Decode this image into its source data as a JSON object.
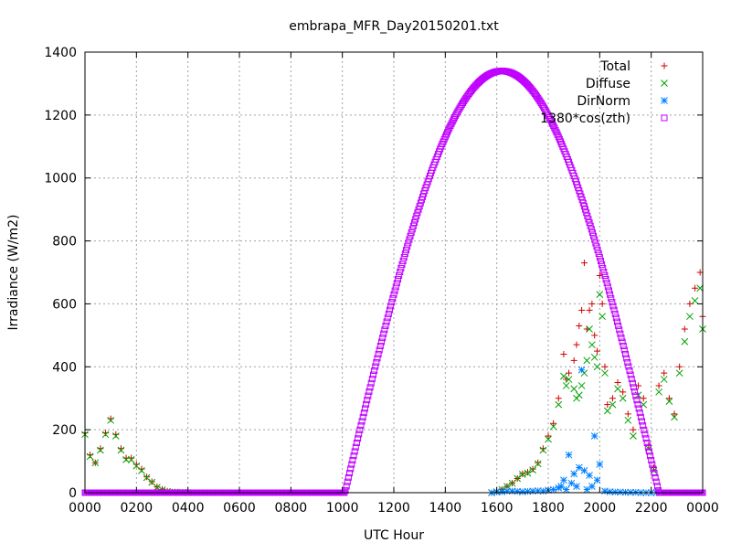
{
  "chart_data": {
    "type": "scatter",
    "title": "embrapa_MFR_Day20150201.txt",
    "xlabel": "UTC Hour",
    "ylabel": "Irradiance (W/m2)",
    "xlim": [
      0,
      24
    ],
    "ylim": [
      0,
      1400
    ],
    "grid": true,
    "legend_position": "top-right",
    "x_tick_labels": [
      "0000",
      "0200",
      "0400",
      "0600",
      "0800",
      "1000",
      "1200",
      "1400",
      "1600",
      "1800",
      "2000",
      "2200",
      "0000"
    ],
    "y_ticks": [
      0,
      200,
      400,
      600,
      800,
      1000,
      1200,
      1400
    ],
    "series": [
      {
        "name": "Total",
        "marker": "plus",
        "color": "#d00000",
        "x": [
          0.0,
          0.2,
          0.4,
          0.6,
          0.8,
          1.0,
          1.2,
          1.4,
          1.6,
          1.8,
          2.0,
          2.2,
          2.4,
          2.6,
          2.8,
          3.0,
          3.2,
          3.5,
          3.8,
          4.0,
          15.8,
          16.0,
          16.2,
          16.4,
          16.6,
          16.8,
          17.0,
          17.2,
          17.4,
          17.6,
          17.8,
          18.0,
          18.2,
          18.4,
          18.6,
          18.7,
          18.8,
          19.0,
          19.1,
          19.2,
          19.3,
          19.4,
          19.5,
          19.6,
          19.7,
          19.8,
          19.9,
          20.0,
          20.1,
          20.2,
          20.3,
          20.5,
          20.7,
          20.9,
          21.1,
          21.3,
          21.5,
          21.7,
          21.9,
          22.1,
          22.3,
          22.5,
          22.7,
          22.9,
          23.1,
          23.3,
          23.5,
          23.7,
          23.9,
          24.0
        ],
        "y": [
          190,
          120,
          95,
          140,
          190,
          235,
          185,
          140,
          110,
          110,
          90,
          75,
          50,
          35,
          18,
          10,
          5,
          2,
          1,
          0,
          0,
          3,
          10,
          20,
          30,
          45,
          60,
          65,
          75,
          95,
          140,
          180,
          220,
          300,
          440,
          360,
          380,
          420,
          470,
          530,
          580,
          730,
          520,
          580,
          600,
          500,
          450,
          690,
          600,
          400,
          280,
          300,
          350,
          320,
          250,
          200,
          340,
          300,
          150,
          80,
          340,
          380,
          300,
          250,
          400,
          520,
          600,
          650,
          700,
          560
        ]
      },
      {
        "name": "Diffuse",
        "marker": "cross",
        "color": "#00a000",
        "x": [
          0.0,
          0.2,
          0.4,
          0.6,
          0.8,
          1.0,
          1.2,
          1.4,
          1.6,
          1.8,
          2.0,
          2.2,
          2.4,
          2.6,
          2.8,
          3.0,
          3.2,
          3.5,
          3.8,
          4.0,
          15.8,
          16.0,
          16.2,
          16.4,
          16.6,
          16.8,
          17.0,
          17.2,
          17.4,
          17.6,
          17.8,
          18.0,
          18.2,
          18.4,
          18.6,
          18.7,
          18.8,
          19.0,
          19.1,
          19.2,
          19.3,
          19.4,
          19.5,
          19.6,
          19.7,
          19.8,
          19.9,
          20.0,
          20.1,
          20.2,
          20.3,
          20.5,
          20.7,
          20.9,
          21.1,
          21.3,
          21.5,
          21.7,
          21.9,
          22.1,
          22.3,
          22.5,
          22.7,
          22.9,
          23.1,
          23.3,
          23.5,
          23.7,
          23.9,
          24.0
        ],
        "y": [
          185,
          115,
          95,
          135,
          185,
          230,
          180,
          135,
          105,
          105,
          85,
          70,
          48,
          33,
          17,
          9,
          4,
          2,
          1,
          0,
          0,
          3,
          10,
          20,
          30,
          45,
          58,
          62,
          72,
          92,
          135,
          170,
          210,
          280,
          370,
          340,
          360,
          330,
          300,
          310,
          340,
          380,
          420,
          520,
          470,
          430,
          400,
          630,
          560,
          380,
          260,
          280,
          330,
          300,
          230,
          180,
          310,
          280,
          140,
          70,
          320,
          360,
          290,
          240,
          380,
          480,
          560,
          610,
          650,
          520
        ]
      },
      {
        "name": "DirNorm",
        "marker": "star",
        "color": "#0080ff",
        "x": [
          15.8,
          16.0,
          16.2,
          16.4,
          16.6,
          16.8,
          17.0,
          17.2,
          17.4,
          17.6,
          17.8,
          18.0,
          18.2,
          18.4,
          18.5,
          18.6,
          18.7,
          18.8,
          18.9,
          19.0,
          19.1,
          19.2,
          19.3,
          19.4,
          19.5,
          19.6,
          19.7,
          19.8,
          19.9,
          20.0,
          20.2,
          20.4,
          20.6,
          20.8,
          21.0,
          21.2,
          21.4,
          21.6,
          21.8,
          22.0,
          22.2
        ],
        "y": [
          0,
          2,
          3,
          5,
          5,
          4,
          3,
          4,
          5,
          6,
          5,
          8,
          10,
          15,
          20,
          40,
          10,
          120,
          30,
          60,
          20,
          80,
          390,
          70,
          10,
          55,
          20,
          180,
          40,
          90,
          5,
          3,
          2,
          2,
          1,
          1,
          1,
          0,
          0,
          0,
          0
        ]
      },
      {
        "name": "1380*cos(zth)",
        "marker": "square",
        "color": "#c000ff",
        "function": "1340*cos(pi*(x-16.2)/(2*6.1)) for 10.1<=x<=22.3 else 0"
      }
    ]
  }
}
